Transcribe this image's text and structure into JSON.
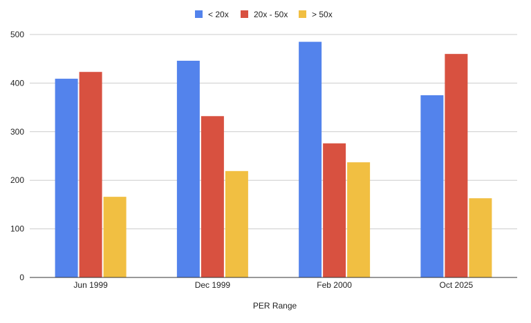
{
  "chart_data": {
    "type": "bar",
    "title": "",
    "xlabel": "PER Range",
    "ylabel": "",
    "categories": [
      "Jun 1999",
      "Dec 1999",
      "Feb 2000",
      "Oct 2025"
    ],
    "series": [
      {
        "name": "< 20x",
        "color": "#5383EC",
        "values": [
          409,
          446,
          485,
          375
        ]
      },
      {
        "name": "20x - 50x",
        "color": "#D85140",
        "values": [
          423,
          332,
          276,
          460
        ]
      },
      {
        "name": "> 50x",
        "color": "#F1BF42",
        "values": [
          166,
          219,
          237,
          163
        ]
      }
    ],
    "ylim": [
      0,
      500
    ],
    "yticks": [
      0,
      100,
      200,
      300,
      400,
      500
    ],
    "grid": true,
    "legend_position": "top-center"
  }
}
